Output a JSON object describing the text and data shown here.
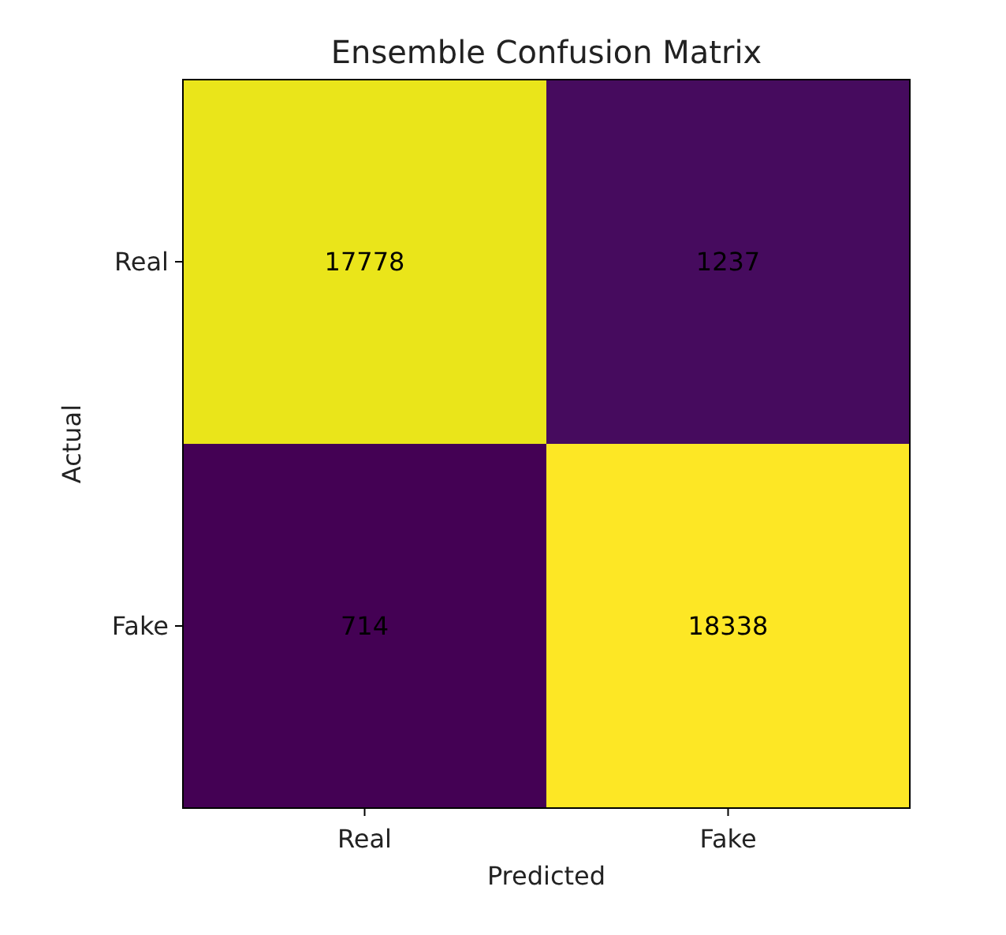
{
  "chart_data": {
    "type": "heatmap",
    "title": "Ensemble Confusion Matrix",
    "xlabel": "Predicted",
    "ylabel": "Actual",
    "categories": [
      "Real",
      "Fake"
    ],
    "y_categories": [
      "Real",
      "Fake"
    ],
    "cells": [
      [
        17778,
        1237
      ],
      [
        714,
        18338
      ]
    ],
    "data_labels": true
  }
}
